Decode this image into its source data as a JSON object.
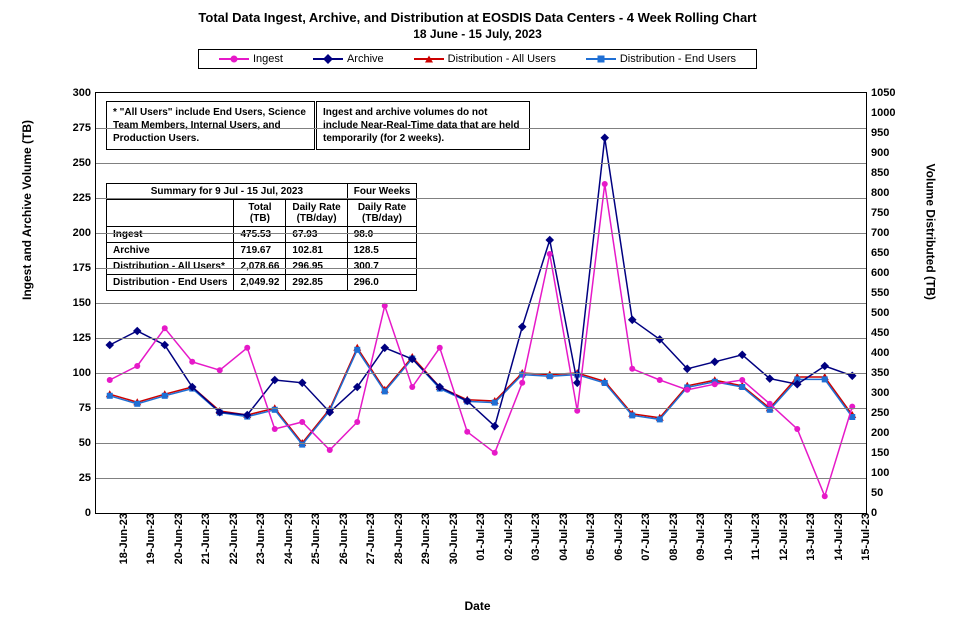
{
  "title": "Total Data Ingest, Archive, and  Distribution at EOSDIS Data Centers - 4 Week Rolling Chart",
  "subtitle": "18  June   -  15  July,   2023",
  "x_label": "Date",
  "y_label_left": "Ingest and Archive Volume (TB)",
  "y_label_right": "Volume Distributed (TB)",
  "legend": {
    "ingest": "Ingest",
    "archive": "Archive",
    "dist_all": "Distribution - All Users",
    "dist_end": "Distribution - End Users"
  },
  "colors": {
    "ingest": "#e619c8",
    "archive": "#000080",
    "dist_all": "#cc0000",
    "dist_end": "#1f6fd4",
    "grid": "#808080",
    "bg": "#ffffff"
  },
  "note1": "* \"All Users\" include End Users, Science Team Members,  Internal Users, and Production Users.",
  "note2": "Ingest and archive volumes do not include Near-Real-Time data that are held temporarily (for 2 weeks).",
  "summary": {
    "title": "Summary for 9 Jul  - 15 Jul, 2023",
    "col_total": "Total (TB)",
    "col_daily": "Daily Rate (TB/day)",
    "col_4wk": "Four Weeks",
    "col_4wk_daily": "Daily Rate (TB/day)",
    "rows": [
      {
        "label": "Ingest",
        "total": "475.53",
        "daily": "67.93",
        "fourwk": "98.0"
      },
      {
        "label": "Archive",
        "total": "719.67",
        "daily": "102.81",
        "fourwk": "128.5"
      },
      {
        "label": "Distribution - All Users*",
        "total": "2,078.66",
        "daily": "296.95",
        "fourwk": "300.7"
      },
      {
        "label": "Distribution - End Users",
        "total": "2,049.92",
        "daily": "292.85",
        "fourwk": "296.0"
      }
    ]
  },
  "dates": [
    "18-Jun-23",
    "19-Jun-23",
    "20-Jun-23",
    "21-Jun-23",
    "22-Jun-23",
    "23-Jun-23",
    "24-Jun-23",
    "25-Jun-23",
    "26-Jun-23",
    "27-Jun-23",
    "28-Jun-23",
    "29-Jun-23",
    "30-Jun-23",
    "01-Jul-23",
    "02-Jul-23",
    "03-Jul-23",
    "04-Jul-23",
    "05-Jul-23",
    "06-Jul-23",
    "07-Jul-23",
    "08-Jul-23",
    "09-Jul-23",
    "10-Jul-23",
    "11-Jul-23",
    "12-Jul-23",
    "13-Jul-23",
    "14-Jul-23",
    "15-Jul-23"
  ],
  "y_left": {
    "min": 0,
    "max": 300,
    "step": 25
  },
  "y_right": {
    "min": 0,
    "max": 1050,
    "step": 50
  },
  "series": {
    "ingest": [
      95,
      105,
      132,
      108,
      102,
      118,
      60,
      65,
      45,
      65,
      148,
      90,
      118,
      58,
      43,
      93,
      185,
      73,
      235,
      103,
      95,
      88,
      92,
      95,
      78,
      60,
      12,
      76
    ],
    "archive": [
      120,
      130,
      120,
      90,
      72,
      70,
      95,
      93,
      72,
      90,
      118,
      110,
      90,
      80,
      62,
      133,
      195,
      93,
      268,
      138,
      124,
      103,
      108,
      113,
      96,
      92,
      105,
      98
    ],
    "dist_all": [
      297,
      277,
      297,
      315,
      255,
      245,
      262,
      175,
      260,
      413,
      308,
      390,
      315,
      283,
      280,
      350,
      346,
      350,
      329,
      248,
      238,
      318,
      332,
      318,
      262,
      340,
      340,
      245
    ],
    "dist_end": [
      293,
      273,
      293,
      311,
      251,
      241,
      258,
      171,
      256,
      408,
      304,
      386,
      311,
      279,
      276,
      346,
      342,
      346,
      325,
      244,
      234,
      314,
      328,
      315,
      258,
      334,
      334,
      240
    ]
  },
  "markers": {
    "ingest": "circle",
    "archive": "diamond",
    "dist_all": "triangle",
    "dist_end": "square"
  },
  "line_width": 1.5,
  "marker_size": 6
}
